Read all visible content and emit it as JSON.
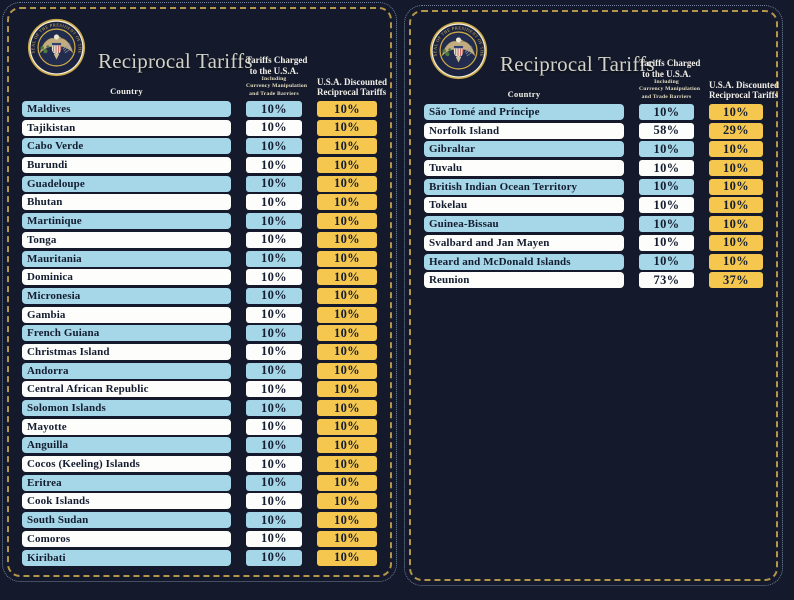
{
  "chart_data": [
    {
      "type": "table",
      "title": "Reciprocal Tariffs",
      "columns": {
        "country": "Country",
        "charged": [
          "Tariffs Charged",
          "to the U.S.A."
        ],
        "charged_sub": [
          "Including",
          "Currency Manipulation",
          "and Trade Barriers"
        ],
        "discount": [
          "U.S.A. Discounted",
          "Reciprocal Tariffs"
        ]
      },
      "rows": [
        {
          "country": "Maldives",
          "charged": "10%",
          "discount": "10%"
        },
        {
          "country": "Tajikistan",
          "charged": "10%",
          "discount": "10%"
        },
        {
          "country": "Cabo Verde",
          "charged": "10%",
          "discount": "10%"
        },
        {
          "country": "Burundi",
          "charged": "10%",
          "discount": "10%"
        },
        {
          "country": "Guadeloupe",
          "charged": "10%",
          "discount": "10%"
        },
        {
          "country": "Bhutan",
          "charged": "10%",
          "discount": "10%"
        },
        {
          "country": "Martinique",
          "charged": "10%",
          "discount": "10%"
        },
        {
          "country": "Tonga",
          "charged": "10%",
          "discount": "10%"
        },
        {
          "country": "Mauritania",
          "charged": "10%",
          "discount": "10%"
        },
        {
          "country": "Dominica",
          "charged": "10%",
          "discount": "10%"
        },
        {
          "country": "Micronesia",
          "charged": "10%",
          "discount": "10%"
        },
        {
          "country": "Gambia",
          "charged": "10%",
          "discount": "10%"
        },
        {
          "country": "French Guiana",
          "charged": "10%",
          "discount": "10%"
        },
        {
          "country": "Christmas Island",
          "charged": "10%",
          "discount": "10%"
        },
        {
          "country": "Andorra",
          "charged": "10%",
          "discount": "10%"
        },
        {
          "country": "Central African Republic",
          "charged": "10%",
          "discount": "10%"
        },
        {
          "country": "Solomon Islands",
          "charged": "10%",
          "discount": "10%"
        },
        {
          "country": "Mayotte",
          "charged": "10%",
          "discount": "10%"
        },
        {
          "country": "Anguilla",
          "charged": "10%",
          "discount": "10%"
        },
        {
          "country": "Cocos (Keeling) Islands",
          "charged": "10%",
          "discount": "10%"
        },
        {
          "country": "Eritrea",
          "charged": "10%",
          "discount": "10%"
        },
        {
          "country": "Cook Islands",
          "charged": "10%",
          "discount": "10%"
        },
        {
          "country": "South Sudan",
          "charged": "10%",
          "discount": "10%"
        },
        {
          "country": "Comoros",
          "charged": "10%",
          "discount": "10%"
        },
        {
          "country": "Kiribati",
          "charged": "10%",
          "discount": "10%"
        }
      ]
    },
    {
      "type": "table",
      "title": "Reciprocal Tariffs",
      "columns": {
        "country": "Country",
        "charged": [
          "Tariffs Charged",
          "to the U.S.A."
        ],
        "charged_sub": [
          "Including",
          "Currency Manipulation",
          "and Trade Barriers"
        ],
        "discount": [
          "U.S.A. Discounted",
          "Reciprocal Tariffs"
        ]
      },
      "rows": [
        {
          "country": "São Tomé and Príncipe",
          "charged": "10%",
          "discount": "10%"
        },
        {
          "country": "Norfolk Island",
          "charged": "58%",
          "discount": "29%"
        },
        {
          "country": "Gibraltar",
          "charged": "10%",
          "discount": "10%"
        },
        {
          "country": "Tuvalu",
          "charged": "10%",
          "discount": "10%"
        },
        {
          "country": "British Indian Ocean Territory",
          "charged": "10%",
          "discount": "10%"
        },
        {
          "country": "Tokelau",
          "charged": "10%",
          "discount": "10%"
        },
        {
          "country": "Guinea-Bissau",
          "charged": "10%",
          "discount": "10%"
        },
        {
          "country": "Svalbard and Jan Mayen",
          "charged": "10%",
          "discount": "10%"
        },
        {
          "country": "Heard and McDonald Islands",
          "charged": "10%",
          "discount": "10%"
        },
        {
          "country": "Reunion",
          "charged": "73%",
          "discount": "37%"
        }
      ]
    }
  ],
  "seal": {
    "ring_text": "SEAL OF THE PRESIDENT OF THE UNITED STATES"
  },
  "colors": {
    "background": "#141a2b",
    "row_blue": "#a6d7e8",
    "row_white": "#fdfdfb",
    "discount_yellow": "#f5c74e",
    "border_gold": "#b3964a",
    "border_outer": "#72829f",
    "title_silver": "#d2d1c8",
    "header_white": "#f2efe8",
    "row_text": "#141d30"
  }
}
